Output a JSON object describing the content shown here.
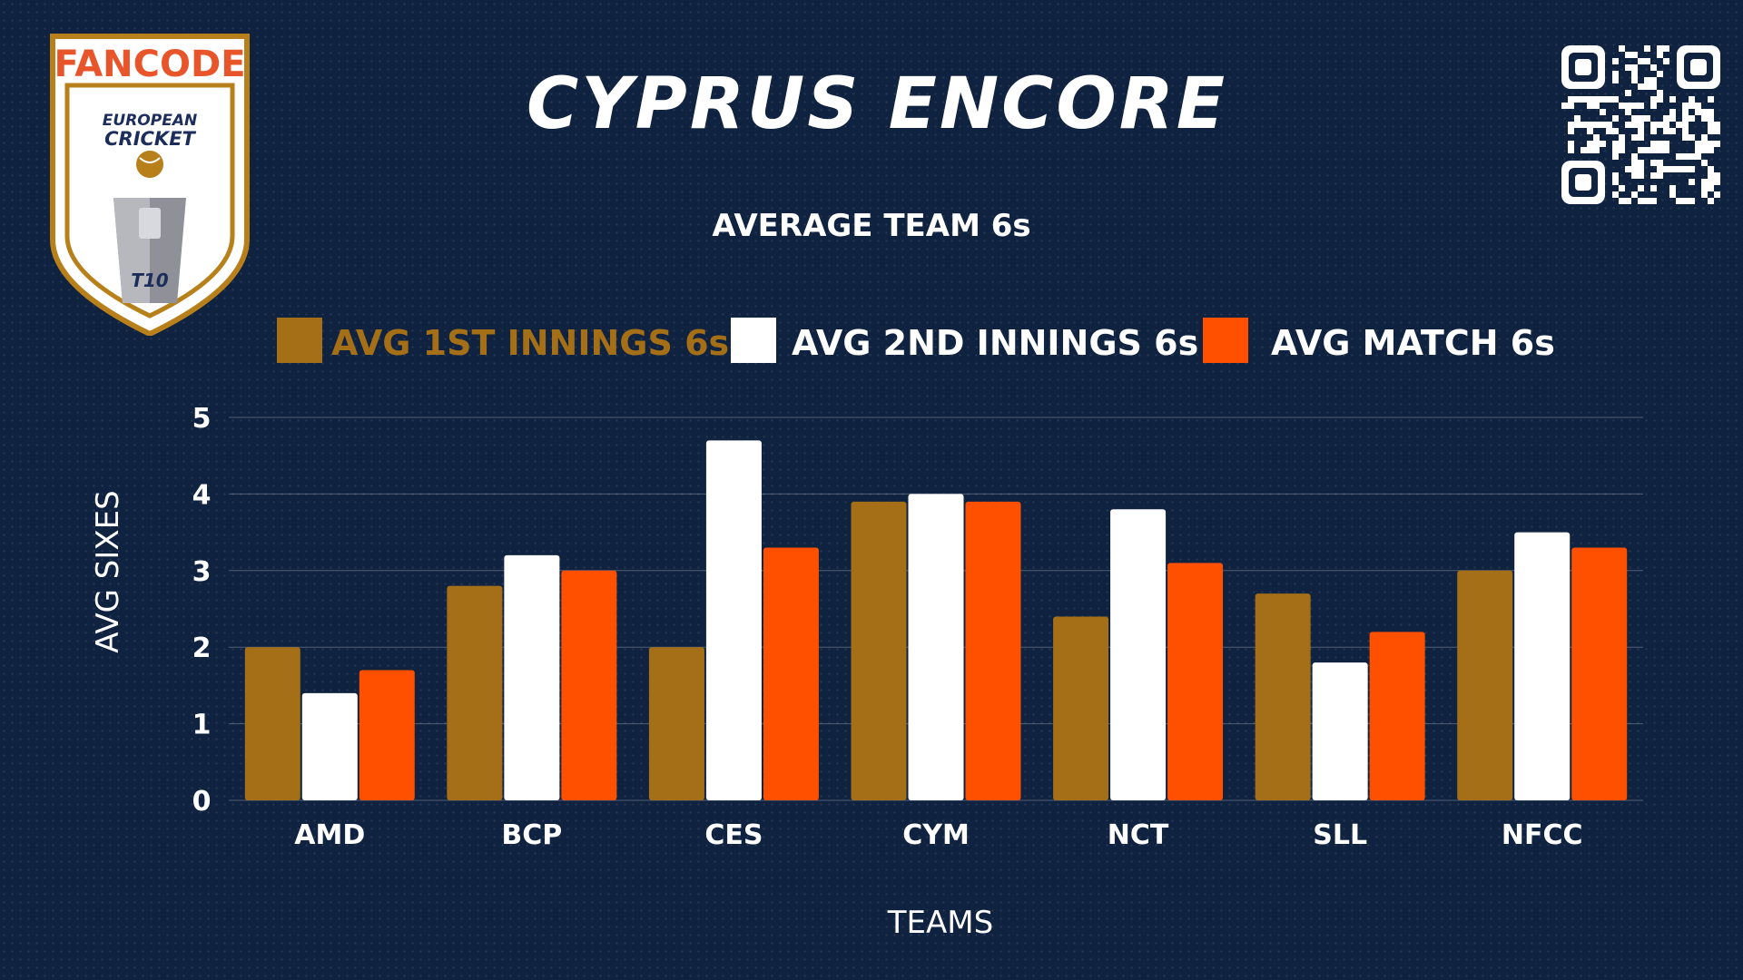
{
  "header": {
    "title": "CYPRUS ENCORE"
  },
  "logo": {
    "brand_text": "FANCODE",
    "line1": "EUROPEAN",
    "line2": "CRICKET",
    "badge": "T10"
  },
  "qr": {
    "icon": "qr-code-icon"
  },
  "colors": {
    "background": "#0f2240",
    "first_innings": "#a46f16",
    "second_innings": "#ffffff",
    "match": "#ff5000",
    "brand_orange": "#e8552a",
    "brand_navy": "#1c2d5c"
  },
  "chart_data": {
    "type": "bar",
    "title": "AVERAGE TEAM 6s",
    "xlabel": "TEAMS",
    "ylabel": "AVG SIXES",
    "ylim": [
      0,
      5
    ],
    "yticks": [
      "0",
      "1",
      "2",
      "3",
      "4",
      "5"
    ],
    "grid": true,
    "legend_position": "top",
    "categories": [
      "AMD",
      "BCP",
      "CES",
      "CYM",
      "NCT",
      "SLL",
      "NFCC"
    ],
    "series": [
      {
        "name": "AVG 1ST INNINGS 6s",
        "color": "#a46f16",
        "values": [
          2.0,
          2.8,
          2.0,
          3.9,
          2.4,
          2.7,
          3.0
        ]
      },
      {
        "name": "AVG 2ND INNINGS 6s",
        "color": "#ffffff",
        "values": [
          1.4,
          3.2,
          4.7,
          4.0,
          3.8,
          1.8,
          3.5
        ]
      },
      {
        "name": "AVG MATCH 6s",
        "color": "#ff5000",
        "values": [
          1.7,
          3.0,
          3.3,
          3.9,
          3.1,
          2.2,
          3.3
        ]
      }
    ]
  }
}
